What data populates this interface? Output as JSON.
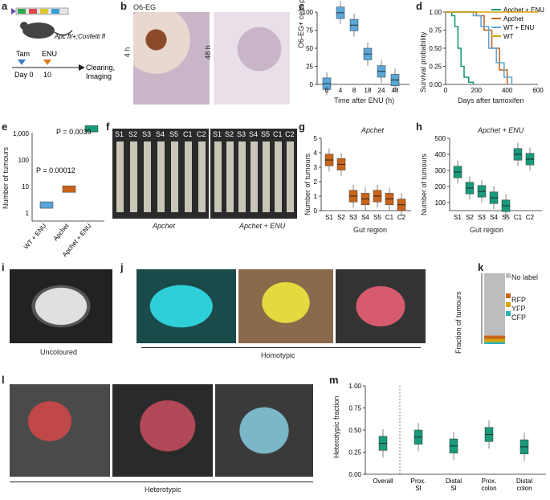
{
  "panel_labels": {
    "a": "a",
    "b": "b",
    "c": "c",
    "d": "d",
    "e": "e",
    "f": "f",
    "g": "g",
    "h": "h",
    "i": "i",
    "j": "j",
    "k": "k",
    "l": "l",
    "m": "m"
  },
  "a": {
    "mouse_label": "Apc fl/+;Confetti fl",
    "tam": "Tam",
    "enu": "ENU",
    "day0": "Day 0",
    "day10": "10",
    "clearing": "Clearing,",
    "imaging": "Imaging"
  },
  "b": {
    "stain": "O6-EG",
    "t1": "4 h",
    "t2": "48 h"
  },
  "c": {
    "ylabel": "O6-EG+ cells per crypt (%)",
    "xlabel": "Time after ENU (h)"
  },
  "d": {
    "ylabel": "Survival probability",
    "xlabel": "Days after tamoxifen"
  },
  "e": {
    "ylabel": "Number of tumours",
    "p1": "P = 0.0039",
    "p2": "P = 0.00012"
  },
  "f": {
    "lanes": [
      "S1",
      "S2",
      "S3",
      "S4",
      "S5",
      "C1",
      "C2"
    ],
    "cap1": "Apchet",
    "cap2": "Apchet + ENU"
  },
  "g": {
    "title": "Apchet",
    "ylabel": "Number of tumours",
    "xlabel": "Gut region"
  },
  "h": {
    "title": "Apchet + ENU",
    "ylabel": "Number of tumours",
    "xlabel": "Gut region"
  },
  "i": {
    "caption": "Uncoloured"
  },
  "j": {
    "caption": "Homotypic"
  },
  "k": {
    "ylabel": "Fraction of tumours",
    "legend": [
      "No label",
      "RFP",
      "YFP",
      "CFP"
    ]
  },
  "l": {
    "caption": "Heterotypic"
  },
  "m": {
    "ylabel": "Heterotypic fraction"
  },
  "colors": {
    "orange": "#c8651b",
    "teal": "#1a9a7a",
    "blue": "#5aa7d8",
    "gold": "#d9a400",
    "cyan": "#2ecfd8",
    "yellow": "#e6d940",
    "pink": "#d65b6e"
  },
  "chart_data": [
    {
      "panel": "c",
      "type": "box",
      "title": "",
      "xlabel": "Time after ENU (h)",
      "ylabel": "O6-EG+ cells per crypt (%)",
      "categories": [
        "0",
        "4",
        "8",
        "18",
        "24",
        "48"
      ],
      "values": [
        1,
        99,
        82,
        42,
        18,
        6
      ],
      "ylim": [
        0,
        100
      ],
      "yticks": [
        0,
        25,
        50,
        75,
        100
      ]
    },
    {
      "panel": "d",
      "type": "line",
      "xlabel": "Days after tamoxifen",
      "ylabel": "Survival probability",
      "ylim": [
        0,
        1
      ],
      "xlim": [
        0,
        600
      ],
      "xticks": [
        0,
        200,
        400,
        600
      ],
      "yticks": [
        0,
        0.25,
        0.5,
        0.75,
        1.0
      ],
      "series": [
        {
          "name": "Apchet + ENU",
          "color": "#1a9a7a",
          "x": [
            0,
            40,
            60,
            80,
            100,
            120,
            150,
            180
          ],
          "y": [
            1,
            0.95,
            0.8,
            0.5,
            0.25,
            0.1,
            0.03,
            0
          ]
        },
        {
          "name": "Apchet",
          "color": "#c8651b",
          "x": [
            0,
            200,
            250,
            300,
            350,
            400
          ],
          "y": [
            1,
            0.95,
            0.75,
            0.5,
            0.2,
            0
          ]
        },
        {
          "name": "WT + ENU",
          "color": "#5aa7d8",
          "x": [
            0,
            180,
            230,
            280,
            330,
            380,
            430
          ],
          "y": [
            1,
            0.95,
            0.8,
            0.5,
            0.3,
            0.1,
            0
          ]
        },
        {
          "name": "WT",
          "color": "#d9a400",
          "x": [
            0,
            600
          ],
          "y": [
            1,
            1
          ]
        }
      ]
    },
    {
      "panel": "e",
      "type": "box",
      "ylabel": "Number of tumours",
      "categories": [
        "WT + ENU",
        "Apchet",
        "Apchet + ENU"
      ],
      "values": [
        2,
        8,
        1500
      ],
      "scale": "log",
      "yticks": [
        "1",
        "10",
        "100",
        "1,000"
      ]
    },
    {
      "panel": "g",
      "type": "box",
      "title": "Apchet",
      "xlabel": "Gut region",
      "ylabel": "Number of tumours",
      "categories": [
        "S1",
        "S2",
        "S3",
        "S4",
        "S5",
        "C1",
        "C2"
      ],
      "values": [
        3.5,
        3.2,
        1,
        0.8,
        1,
        0.8,
        0.4
      ],
      "ylim": [
        0,
        5
      ],
      "yticks": [
        0,
        1,
        2,
        3,
        4,
        5
      ]
    },
    {
      "panel": "h",
      "type": "box",
      "title": "Apchet + ENU",
      "xlabel": "Gut region",
      "ylabel": "Number of tumours",
      "categories": [
        "S1",
        "S2",
        "S3",
        "S4",
        "S5",
        "C1",
        "C2"
      ],
      "values": [
        290,
        190,
        170,
        130,
        80,
        400,
        370
      ],
      "ylim": [
        50,
        500
      ],
      "yticks": [
        100,
        200,
        300,
        400,
        500
      ]
    },
    {
      "panel": "k",
      "type": "bar",
      "ylabel": "Fraction of tumours",
      "series": [
        {
          "name": "No label",
          "value": 0.88,
          "color": "#bdbdbd"
        },
        {
          "name": "RFP",
          "value": 0.05,
          "color": "#c8651b"
        },
        {
          "name": "YFP",
          "value": 0.04,
          "color": "#d9a400"
        },
        {
          "name": "CFP",
          "value": 0.03,
          "color": "#2fb3b3"
        }
      ]
    },
    {
      "panel": "m",
      "type": "box",
      "ylabel": "Heterotypic fraction",
      "categories": [
        "Overall",
        "Prox. SI",
        "Distal SI",
        "Prox. colon",
        "Distal colon"
      ],
      "values": [
        0.35,
        0.42,
        0.32,
        0.45,
        0.31
      ],
      "ylim": [
        0,
        1
      ],
      "yticks": [
        0,
        0.25,
        0.5,
        0.75,
        1.0
      ]
    }
  ]
}
